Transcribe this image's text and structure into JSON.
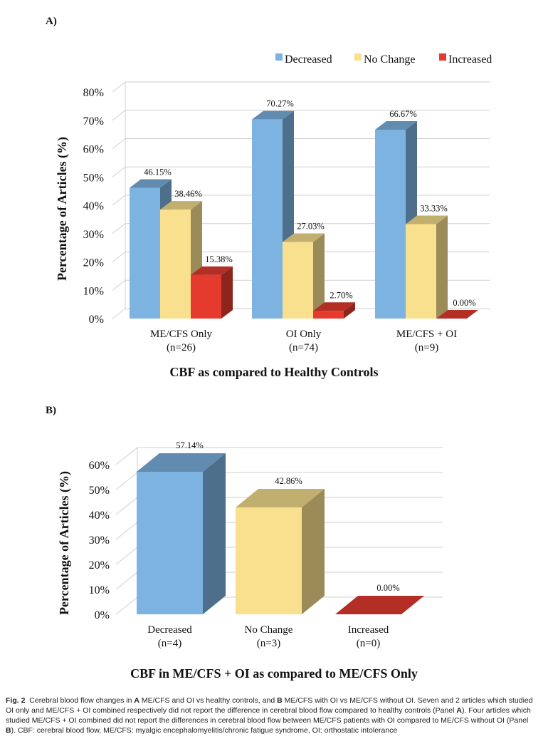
{
  "panel_a_label": "A)",
  "panel_b_label": "B)",
  "chart_data": [
    {
      "type": "bar",
      "title": "",
      "xlabel": "CBF as compared to Healthy Controls",
      "ylabel": "Percentage of Articles (%)",
      "ylim": [
        0,
        80
      ],
      "yticks": [
        "0%",
        "10%",
        "20%",
        "30%",
        "40%",
        "50%",
        "60%",
        "70%",
        "80%"
      ],
      "categories": [
        {
          "line1": "ME/CFS Only",
          "line2": "(n=26)"
        },
        {
          "line1": "OI Only",
          "line2": "(n=74)"
        },
        {
          "line1": "ME/CFS + OI",
          "line2": "(n=9)"
        }
      ],
      "series": [
        {
          "name": "Decreased",
          "color": "#7CB3E0",
          "values": [
            46.15,
            70.27,
            66.67
          ],
          "labels": [
            "46.15%",
            "70.27%",
            "66.67%"
          ]
        },
        {
          "name": "No Change",
          "color": "#F8E08E",
          "values": [
            38.46,
            27.03,
            33.33
          ],
          "labels": [
            "38.46%",
            "27.03%",
            "33.33%"
          ]
        },
        {
          "name": "Increased",
          "color": "#E53B2E",
          "values": [
            15.38,
            2.7,
            0.0
          ],
          "labels": [
            "15.38%",
            "2.70%",
            "0.00%"
          ]
        }
      ],
      "legend": "top-right",
      "grid": true
    },
    {
      "type": "bar",
      "title": "",
      "xlabel": "CBF in ME/CFS + OI as compared to ME/CFS Only",
      "ylabel": "Percentage of Articles (%)",
      "ylim": [
        0,
        60
      ],
      "yticks": [
        "0%",
        "10%",
        "20%",
        "30%",
        "40%",
        "50%",
        "60%"
      ],
      "categories": [
        {
          "line1": "Decreased",
          "line2": "(n=4)"
        },
        {
          "line1": "No Change",
          "line2": "(n=3)"
        },
        {
          "line1": "Increased",
          "line2": "(n=0)"
        }
      ],
      "series": [
        {
          "name": "Percentage",
          "values": [
            57.14,
            42.86,
            0.0
          ],
          "labels": [
            "57.14%",
            "42.86%",
            "0.00%"
          ],
          "colors": [
            "#7CB3E0",
            "#F8E08E",
            "#E53B2E"
          ]
        }
      ],
      "grid": true
    }
  ],
  "caption": {
    "fig": "Fig. 2",
    "text_1": "Cerebral blood flow changes in ",
    "a": "A",
    "text_2": " ME/CFS and OI vs healthy controls, and ",
    "b": "B",
    "text_3": " ME/CFS with OI vs ME/CFS without OI. Seven and 2 articles which studied OI only and ME/CFS + OI combined respectively did not report the difference in cerebral blood flow compared to healthy controls (Panel ",
    "a2": "A",
    "text_4": "). Four articles which studied ME/CFS + OI combined did not report the differences in cerebral blood flow between ME/CFS patients with OI compared to ME/CFS without OI (Panel ",
    "b2": "B",
    "text_5": "). CBF: cerebral blood flow, ME/CFS: myalgic encephalomyelitis/chronic fatigue syndrome, OI: orthostatic intolerance"
  }
}
